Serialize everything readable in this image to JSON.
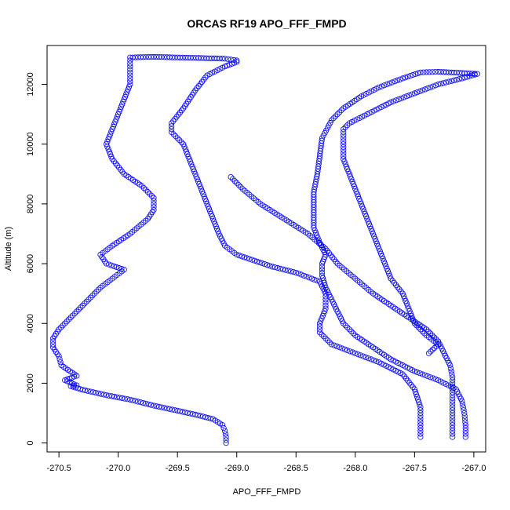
{
  "chart_data": {
    "type": "scatter",
    "title": "ORCAS RF19 APO_FFF_FMPD",
    "xlabel": "APO_FFF_FMPD",
    "ylabel": "Altitude (m)",
    "xlim": [
      -270.6,
      -266.9
    ],
    "ylim": [
      -300,
      13300
    ],
    "x_ticks": [
      -270.5,
      -270.0,
      -269.5,
      -269.0,
      -268.5,
      -268.0,
      -267.5,
      -267.0
    ],
    "x_tick_labels": [
      "-270.5",
      "-270.0",
      "-269.5",
      "-269.0",
      "-268.5",
      "-268.0",
      "-267.5",
      "-267.0"
    ],
    "y_ticks": [
      0,
      2000,
      4000,
      6000,
      8000,
      10000,
      12000
    ],
    "y_tick_labels": [
      "0",
      "2000",
      "4000",
      "6000",
      "8000",
      "10000",
      "12000"
    ],
    "marker": "open-circle",
    "marker_color": "#0000ff",
    "grid": false,
    "legend": "none",
    "series": [
      {
        "points": [
          [
            -269.09,
            0
          ],
          [
            -269.09,
            200
          ],
          [
            -269.1,
            400
          ],
          [
            -269.12,
            600
          ],
          [
            -269.2,
            800
          ],
          [
            -269.35,
            950
          ],
          [
            -269.5,
            1080
          ],
          [
            -269.7,
            1250
          ],
          [
            -269.9,
            1450
          ],
          [
            -270.1,
            1600
          ],
          [
            -270.3,
            1780
          ],
          [
            -270.4,
            1900
          ],
          [
            -270.35,
            1930
          ],
          [
            -270.45,
            2100
          ],
          [
            -270.35,
            2250
          ],
          [
            -270.48,
            2600
          ],
          [
            -270.5,
            2900
          ],
          [
            -270.55,
            3200
          ],
          [
            -270.55,
            3500
          ],
          [
            -270.5,
            3800
          ],
          [
            -270.4,
            4200
          ],
          [
            -270.3,
            4600
          ],
          [
            -270.25,
            4800
          ],
          [
            -270.15,
            5200
          ],
          [
            -270.05,
            5500
          ],
          [
            -269.95,
            5800
          ],
          [
            -270.1,
            6000
          ],
          [
            -270.15,
            6300
          ],
          [
            -270.05,
            6600
          ],
          [
            -269.9,
            7000
          ],
          [
            -269.75,
            7500
          ],
          [
            -269.7,
            7800
          ],
          [
            -269.7,
            8200
          ],
          [
            -269.8,
            8600
          ],
          [
            -269.95,
            9000
          ],
          [
            -270.05,
            9500
          ],
          [
            -270.1,
            10000
          ],
          [
            -270.05,
            10500
          ],
          [
            -270.0,
            11000
          ],
          [
            -269.95,
            11500
          ],
          [
            -269.9,
            12000
          ],
          [
            -269.9,
            12500
          ],
          [
            -269.9,
            12900
          ],
          [
            -269.7,
            12920
          ],
          [
            -269.5,
            12900
          ],
          [
            -269.3,
            12880
          ],
          [
            -269.1,
            12860
          ],
          [
            -269.0,
            12800
          ],
          [
            -269.0,
            12750
          ],
          [
            -269.1,
            12600
          ],
          [
            -269.25,
            12300
          ],
          [
            -269.35,
            11800
          ],
          [
            -269.45,
            11200
          ],
          [
            -269.55,
            10700
          ],
          [
            -269.55,
            10400
          ],
          [
            -269.45,
            10000
          ],
          [
            -269.4,
            9500
          ],
          [
            -269.35,
            9000
          ],
          [
            -269.3,
            8500
          ],
          [
            -269.25,
            8000
          ],
          [
            -269.2,
            7500
          ],
          [
            -269.15,
            7000
          ],
          [
            -269.1,
            6600
          ],
          [
            -269.0,
            6300
          ],
          [
            -268.85,
            6100
          ],
          [
            -268.7,
            5900
          ],
          [
            -268.5,
            5700
          ],
          [
            -268.3,
            5400
          ],
          [
            -268.25,
            5000
          ],
          [
            -268.25,
            4500
          ],
          [
            -268.3,
            4000
          ],
          [
            -268.3,
            3700
          ],
          [
            -268.2,
            3300
          ],
          [
            -268.0,
            3000
          ],
          [
            -267.8,
            2700
          ],
          [
            -267.6,
            2300
          ],
          [
            -267.5,
            1800
          ],
          [
            -267.45,
            1200
          ],
          [
            -267.45,
            800
          ],
          [
            -267.45,
            400
          ],
          [
            -267.45,
            200
          ]
        ]
      },
      {
        "points": [
          [
            -269.05,
            8900
          ],
          [
            -268.95,
            8500
          ],
          [
            -268.8,
            8000
          ],
          [
            -268.6,
            7500
          ],
          [
            -268.4,
            7000
          ],
          [
            -268.25,
            6500
          ],
          [
            -268.15,
            6000
          ],
          [
            -268.0,
            5500
          ],
          [
            -267.85,
            5000
          ],
          [
            -267.7,
            4600
          ],
          [
            -267.55,
            4200
          ],
          [
            -267.4,
            3800
          ],
          [
            -267.3,
            3400
          ],
          [
            -267.25,
            3000
          ],
          [
            -267.2,
            2600
          ],
          [
            -267.18,
            2200
          ],
          [
            -267.18,
            1800
          ],
          [
            -267.18,
            1400
          ],
          [
            -267.18,
            1000
          ],
          [
            -267.18,
            600
          ],
          [
            -267.18,
            200
          ]
        ]
      },
      {
        "points": [
          [
            -267.07,
            200
          ],
          [
            -267.07,
            600
          ],
          [
            -267.08,
            1000
          ],
          [
            -267.1,
            1400
          ],
          [
            -267.15,
            1800
          ],
          [
            -267.3,
            2100
          ],
          [
            -267.5,
            2400
          ],
          [
            -267.7,
            2800
          ],
          [
            -267.85,
            3200
          ],
          [
            -268.0,
            3600
          ],
          [
            -268.1,
            4000
          ],
          [
            -268.15,
            4400
          ],
          [
            -268.2,
            4800
          ],
          [
            -268.25,
            5200
          ],
          [
            -268.28,
            5600
          ],
          [
            -268.28,
            6000
          ],
          [
            -268.25,
            6300
          ],
          [
            -268.3,
            6700
          ],
          [
            -268.35,
            7200
          ],
          [
            -268.35,
            7800
          ],
          [
            -268.35,
            8400
          ],
          [
            -268.32,
            9000
          ],
          [
            -268.3,
            9600
          ],
          [
            -268.28,
            10200
          ],
          [
            -268.2,
            10800
          ],
          [
            -268.1,
            11200
          ],
          [
            -267.95,
            11600
          ],
          [
            -267.8,
            11900
          ],
          [
            -267.6,
            12200
          ],
          [
            -267.45,
            12400
          ],
          [
            -267.3,
            12420
          ],
          [
            -267.1,
            12380
          ],
          [
            -266.97,
            12350
          ],
          [
            -267.1,
            12200
          ],
          [
            -267.3,
            12000
          ],
          [
            -267.5,
            11700
          ],
          [
            -267.7,
            11400
          ],
          [
            -267.9,
            11000
          ],
          [
            -268.05,
            10700
          ],
          [
            -268.1,
            10500
          ],
          [
            -268.1,
            10000
          ],
          [
            -268.1,
            9500
          ],
          [
            -268.05,
            9000
          ],
          [
            -268.0,
            8500
          ],
          [
            -267.95,
            8000
          ],
          [
            -267.9,
            7500
          ],
          [
            -267.85,
            7000
          ],
          [
            -267.8,
            6500
          ],
          [
            -267.75,
            6000
          ],
          [
            -267.7,
            5500
          ],
          [
            -267.6,
            5000
          ],
          [
            -267.55,
            4500
          ],
          [
            -267.5,
            4000
          ],
          [
            -267.4,
            3600
          ],
          [
            -267.3,
            3300
          ],
          [
            -267.38,
            3000
          ]
        ]
      }
    ]
  }
}
